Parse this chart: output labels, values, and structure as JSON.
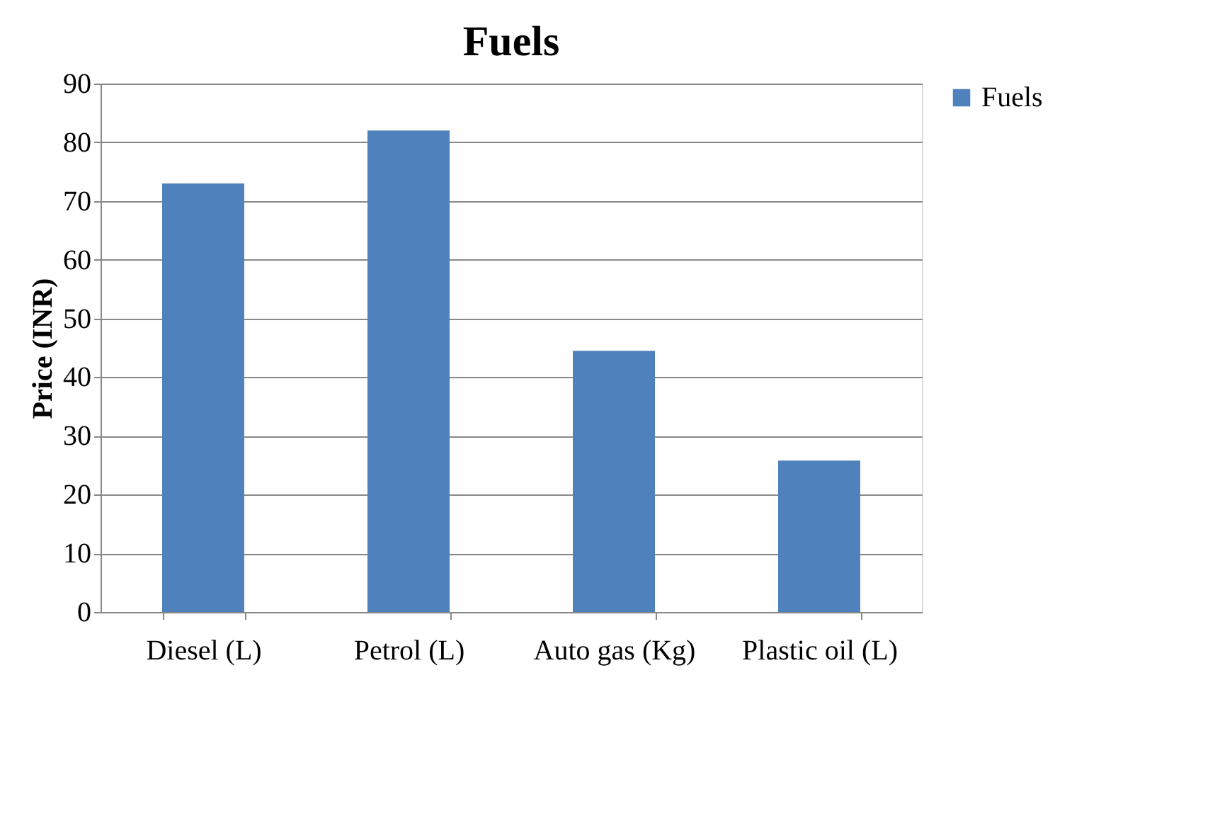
{
  "chart_data": {
    "type": "bar",
    "title": "Fuels",
    "ylabel": "Price (INR)",
    "categories": [
      "Diesel (L)",
      "Petrol (L)",
      "Auto gas (Kg)",
      "Plastic oil (L)"
    ],
    "series": [
      {
        "name": "Fuels",
        "color": "#4f81bd",
        "values": [
          73,
          82,
          44.5,
          25.8
        ]
      }
    ],
    "ylim": [
      0,
      90
    ],
    "yticks": [
      0,
      10,
      20,
      30,
      40,
      50,
      60,
      70,
      80,
      90
    ],
    "grid": "y",
    "legend": "right"
  }
}
